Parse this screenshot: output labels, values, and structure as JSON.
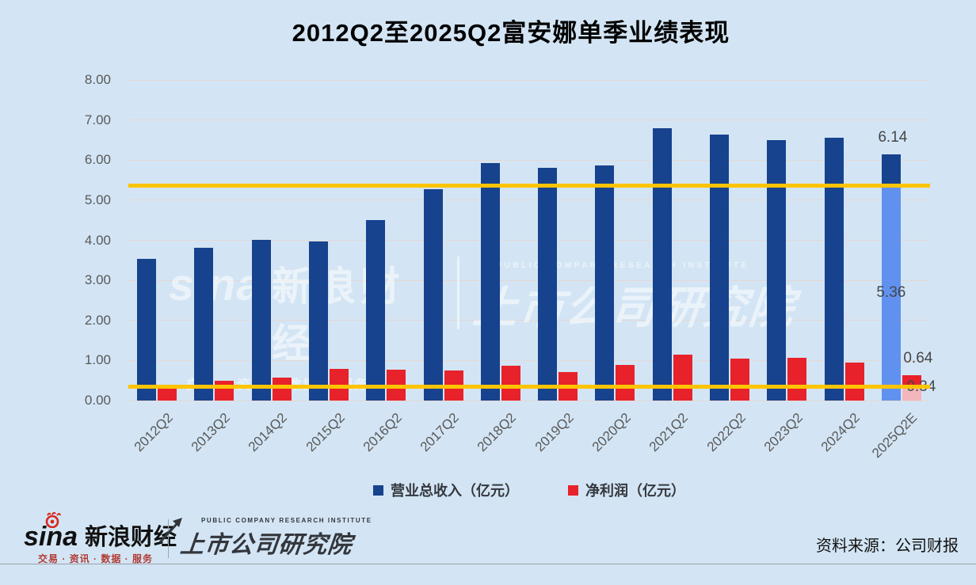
{
  "title": "2012Q2至2025Q2富安娜单季业绩表现",
  "source": "资料来源：公司财报",
  "footer": {
    "sina_wordmark": "sina",
    "sina_brand": "新浪财经",
    "sina_tagline": "交易 · 资讯 · 数据 · 服务",
    "institute_en": "PUBLIC COMPANY RESEARCH INSTITUTE",
    "institute_cn": "上市公司研究院"
  },
  "watermark": {
    "sina_wordmark": "sina",
    "brand": "新浪财经",
    "tagline_items": [
      "交易",
      "资讯",
      "数据",
      "服务"
    ],
    "arrow": "↗",
    "institute_en": "PUBLIC COMPANY RESEARCH INSTITUTE",
    "institute_cn": "上市公司研究院"
  },
  "colors": {
    "background": "#d3e5f4",
    "revenue_bar": "#17428d",
    "profit_bar": "#e8222a",
    "forecast_revenue_bar": "#6191ef",
    "forecast_profit_bar": "#f3b6bc",
    "reference_line": "#fec400",
    "gridline": "#e3d8d6",
    "axis_text": "#595959",
    "label_text": "#44474a"
  },
  "chart_data": {
    "type": "bar",
    "title": "2012Q2至2025Q2富安娜单季业绩表现",
    "categories": [
      "2012Q2",
      "2013Q2",
      "2014Q2",
      "2015Q2",
      "2016Q2",
      "2017Q2",
      "2018Q2",
      "2019Q2",
      "2020Q2",
      "2021Q2",
      "2022Q2",
      "2023Q2",
      "2024Q2",
      "2025Q2E"
    ],
    "series": [
      {
        "name": "营业总收入（亿元）",
        "color": "#17428d",
        "values": [
          3.53,
          3.81,
          4.01,
          3.97,
          4.5,
          5.28,
          5.93,
          5.81,
          5.87,
          6.8,
          6.64,
          6.5,
          6.56,
          6.14
        ]
      },
      {
        "name": "净利润（亿元）",
        "color": "#e8222a",
        "values": [
          0.3,
          0.5,
          0.57,
          0.79,
          0.78,
          0.76,
          0.86,
          0.72,
          0.89,
          1.15,
          1.05,
          1.07,
          0.95,
          0.64
        ]
      }
    ],
    "forecast": {
      "category": "2025Q2E",
      "revenue_total": 6.14,
      "revenue_base": 5.36,
      "profit_total": 0.64,
      "profit_base": 0.34,
      "labels": [
        "6.14",
        "5.36",
        "0.64",
        "0.34"
      ]
    },
    "reference_lines": [
      5.36,
      0.34
    ],
    "ylim": [
      0,
      8
    ],
    "ytick_step": 1,
    "ytick_format": "0.00",
    "grid": true,
    "legend_position": "bottom"
  }
}
